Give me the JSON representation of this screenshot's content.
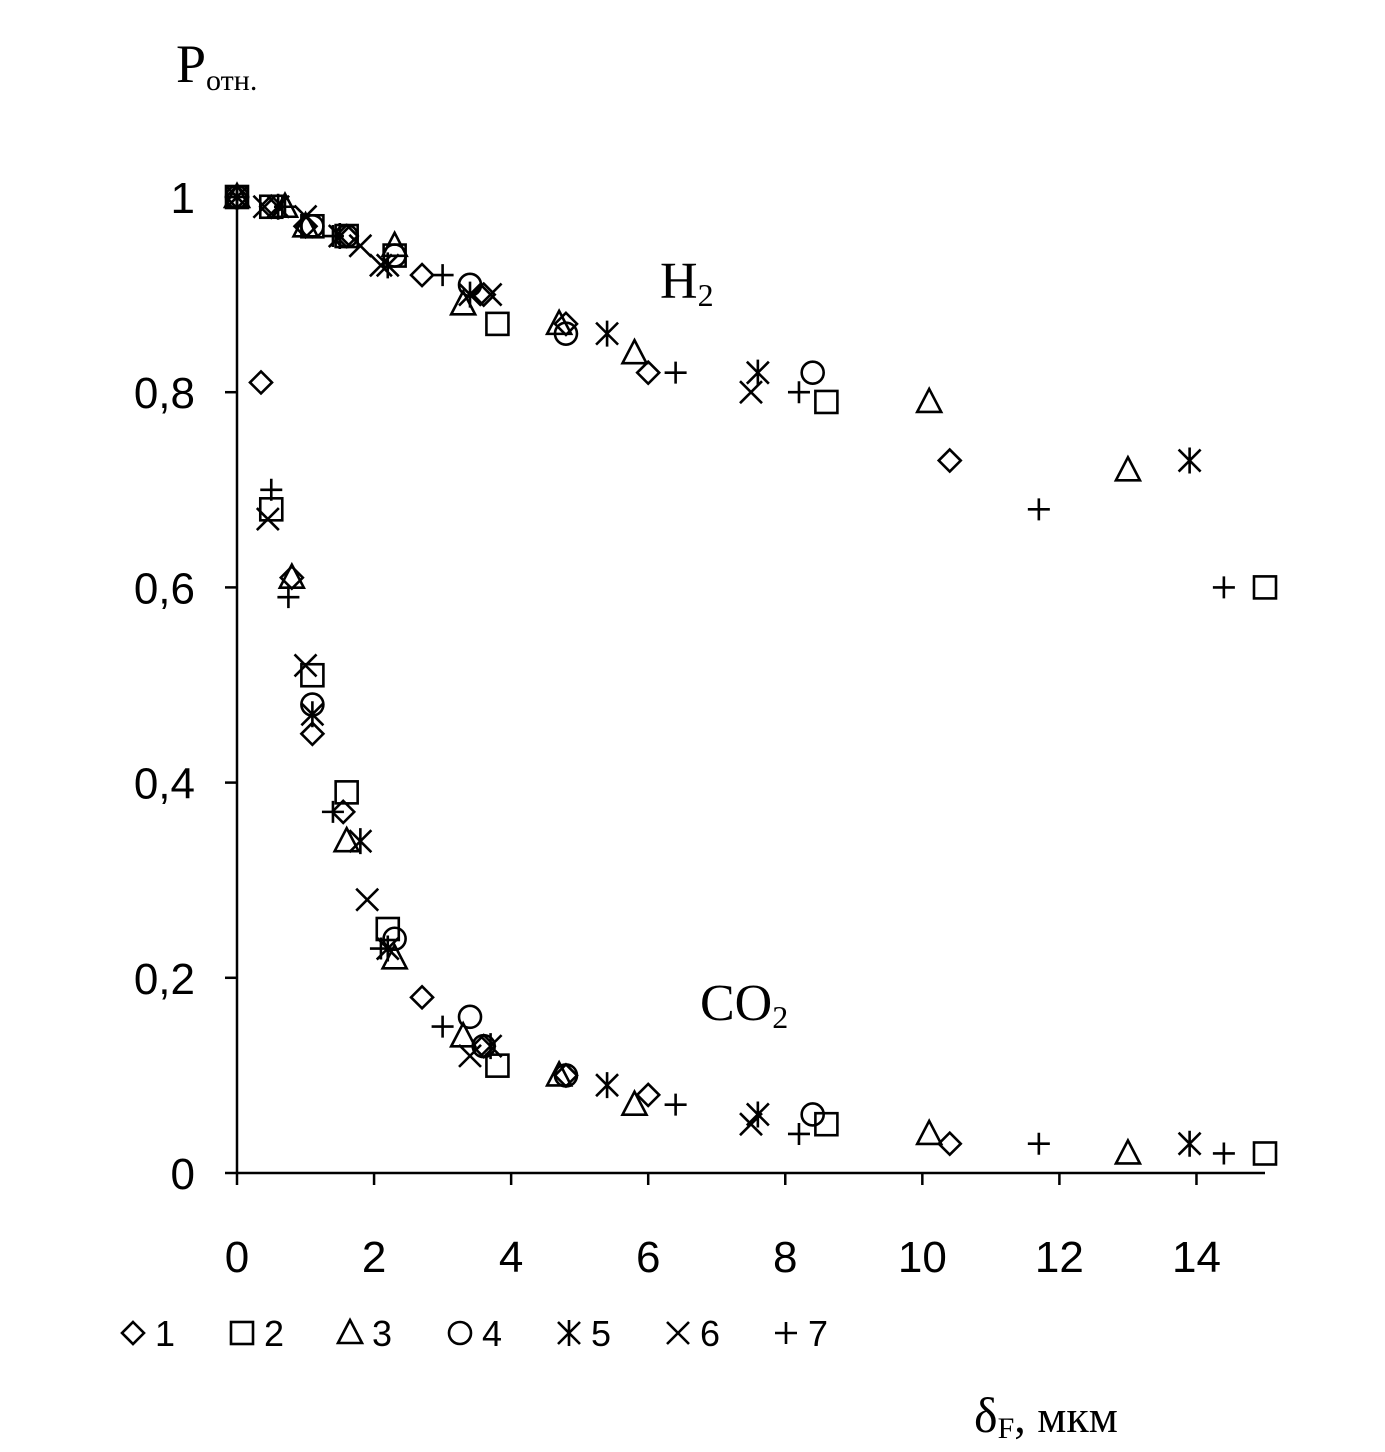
{
  "chart_data": {
    "type": "scatter",
    "ylabel_main": "P",
    "ylabel_sub": "отн.",
    "xlabel_main": "δ",
    "xlabel_sub": "F",
    "xlabel_unit": ",  мкм",
    "xlim": [
      0,
      15
    ],
    "ylim": [
      0,
      1
    ],
    "x_ticks": [
      0,
      2,
      4,
      6,
      8,
      10,
      12,
      14
    ],
    "y_ticks": [
      0,
      0.2,
      0.4,
      0.6,
      0.8,
      1
    ],
    "x_tick_labels": [
      "0",
      "2",
      "4",
      "6",
      "8",
      "10",
      "12",
      "14"
    ],
    "y_tick_labels": [
      "0",
      "0,2",
      "0,4",
      "0,6",
      "0,8",
      "1"
    ],
    "annotations": [
      {
        "main": "H",
        "sub": "2",
        "x": 6.2,
        "y": 0.9
      },
      {
        "main": "CO",
        "sub": "2",
        "x": 6.7,
        "y": 0.18
      }
    ],
    "legend_position": "bottom-left",
    "series": [
      {
        "name": "1",
        "marker": "diamond",
        "h2": [
          [
            0,
            1
          ],
          [
            0.5,
            0.99
          ],
          [
            1.0,
            0.97
          ],
          [
            1.6,
            0.96
          ],
          [
            2.7,
            0.92
          ],
          [
            3.6,
            0.9
          ],
          [
            4.8,
            0.87
          ],
          [
            6.0,
            0.82
          ],
          [
            10.4,
            0.73
          ]
        ],
        "co2": [
          [
            0.35,
            0.81
          ],
          [
            0.8,
            0.61
          ],
          [
            1.1,
            0.45
          ],
          [
            1.55,
            0.37
          ],
          [
            2.7,
            0.18
          ],
          [
            3.6,
            0.13
          ],
          [
            4.8,
            0.1
          ],
          [
            6.0,
            0.08
          ],
          [
            10.4,
            0.03
          ]
        ]
      },
      {
        "name": "2",
        "marker": "square",
        "h2": [
          [
            0,
            1
          ],
          [
            0.5,
            0.99
          ],
          [
            1.1,
            0.97
          ],
          [
            1.6,
            0.96
          ],
          [
            2.3,
            0.94
          ],
          [
            3.8,
            0.87
          ],
          [
            8.6,
            0.79
          ],
          [
            15,
            0.6
          ]
        ],
        "co2": [
          [
            0.5,
            0.68
          ],
          [
            1.1,
            0.51
          ],
          [
            1.6,
            0.39
          ],
          [
            2.2,
            0.25
          ],
          [
            3.8,
            0.11
          ],
          [
            8.6,
            0.05
          ],
          [
            15,
            0.02
          ]
        ]
      },
      {
        "name": "3",
        "marker": "triangle",
        "h2": [
          [
            0,
            1
          ],
          [
            0.7,
            0.99
          ],
          [
            1.0,
            0.97
          ],
          [
            2.3,
            0.95
          ],
          [
            3.3,
            0.89
          ],
          [
            4.7,
            0.87
          ],
          [
            5.8,
            0.84
          ],
          [
            10.1,
            0.79
          ],
          [
            13.0,
            0.72
          ]
        ],
        "co2": [
          [
            0.8,
            0.61
          ],
          [
            1.6,
            0.34
          ],
          [
            2.3,
            0.22
          ],
          [
            3.3,
            0.14
          ],
          [
            4.7,
            0.1
          ],
          [
            5.8,
            0.07
          ],
          [
            10.1,
            0.04
          ],
          [
            13.0,
            0.02
          ]
        ]
      },
      {
        "name": "4",
        "marker": "circle",
        "h2": [
          [
            0,
            1
          ],
          [
            1.1,
            0.97
          ],
          [
            1.6,
            0.96
          ],
          [
            2.3,
            0.94
          ],
          [
            3.4,
            0.91
          ],
          [
            4.8,
            0.86
          ],
          [
            8.4,
            0.82
          ]
        ],
        "co2": [
          [
            1.1,
            0.48
          ],
          [
            2.3,
            0.24
          ],
          [
            3.4,
            0.16
          ],
          [
            3.6,
            0.13
          ],
          [
            4.8,
            0.1
          ],
          [
            8.4,
            0.06
          ]
        ]
      },
      {
        "name": "5",
        "marker": "asterisk",
        "h2": [
          [
            0,
            1
          ],
          [
            0.6,
            0.99
          ],
          [
            1.5,
            0.96
          ],
          [
            2.2,
            0.93
          ],
          [
            3.4,
            0.9
          ],
          [
            5.4,
            0.86
          ],
          [
            7.6,
            0.82
          ],
          [
            13.9,
            0.73
          ]
        ],
        "co2": [
          [
            1.1,
            0.47
          ],
          [
            1.8,
            0.34
          ],
          [
            2.2,
            0.23
          ],
          [
            3.7,
            0.13
          ],
          [
            5.4,
            0.09
          ],
          [
            7.6,
            0.06
          ],
          [
            13.9,
            0.03
          ]
        ]
      },
      {
        "name": "6",
        "marker": "x",
        "h2": [
          [
            0,
            1
          ],
          [
            0.4,
            0.99
          ],
          [
            1.0,
            0.98
          ],
          [
            1.8,
            0.95
          ],
          [
            2.1,
            0.93
          ],
          [
            3.7,
            0.9
          ],
          [
            7.5,
            0.8
          ]
        ],
        "co2": [
          [
            0.45,
            0.67
          ],
          [
            1.0,
            0.52
          ],
          [
            1.9,
            0.28
          ],
          [
            3.4,
            0.12
          ],
          [
            7.5,
            0.05
          ]
        ]
      },
      {
        "name": "7",
        "marker": "plus",
        "h2": [
          [
            0,
            1
          ],
          [
            0.7,
            0.99
          ],
          [
            1.4,
            0.96
          ],
          [
            3.0,
            0.92
          ],
          [
            6.4,
            0.82
          ],
          [
            8.2,
            0.8
          ],
          [
            11.7,
            0.68
          ],
          [
            14.4,
            0.6
          ]
        ],
        "co2": [
          [
            0.5,
            0.7
          ],
          [
            0.75,
            0.59
          ],
          [
            1.4,
            0.37
          ],
          [
            2.1,
            0.23
          ],
          [
            3.0,
            0.15
          ],
          [
            6.4,
            0.07
          ],
          [
            8.2,
            0.04
          ],
          [
            11.7,
            0.03
          ],
          [
            14.4,
            0.02
          ]
        ]
      }
    ]
  }
}
